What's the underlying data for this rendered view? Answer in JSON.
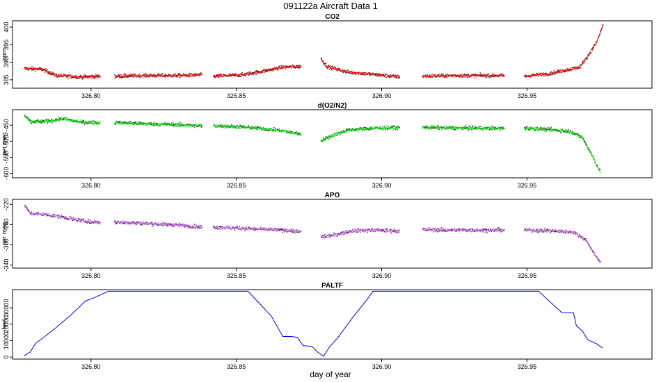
{
  "figure": {
    "title": "091122a   Aircraft Data 1",
    "xlabel": "day of year"
  },
  "chart_data": [
    {
      "type": "scatter",
      "title": "CO2",
      "ylabel": "ppm",
      "xlim": [
        326.773,
        326.993
      ],
      "ylim": [
        382.6,
        401.8
      ],
      "xticks": [
        "326.80",
        "326.85",
        "326.90",
        "326.95"
      ],
      "yticks": [
        "385",
        "390",
        "395",
        "400"
      ],
      "color": "#ff0000",
      "series": [
        {
          "x": [
            326.777,
            326.783,
            326.788,
            326.796,
            326.803
          ],
          "y": [
            388.2,
            388.0,
            386.2,
            385.8,
            386.0
          ]
        },
        {
          "x": [
            326.808,
            326.82,
            326.83,
            326.838
          ],
          "y": [
            386.0,
            386.2,
            386.2,
            386.4
          ]
        },
        {
          "x": [
            326.842,
            326.852,
            326.86,
            326.866,
            326.872
          ],
          "y": [
            386.0,
            386.4,
            387.6,
            388.6,
            388.8
          ]
        },
        {
          "x": [
            326.879,
            326.881,
            326.888,
            326.896,
            326.906
          ],
          "y": [
            391.0,
            388.8,
            387.2,
            386.6,
            385.8
          ]
        },
        {
          "x": [
            326.914,
            326.925,
            326.942
          ],
          "y": [
            386.0,
            386.2,
            386.2
          ]
        },
        {
          "x": [
            326.949,
            326.958,
            326.968,
            326.971,
            326.974,
            326.976
          ],
          "y": [
            386.0,
            386.8,
            388.6,
            392.0,
            396.0,
            400.6
          ]
        }
      ]
    },
    {
      "type": "scatter",
      "title": "d(O2/N2)",
      "ylabel": "per meg",
      "xlim": [
        326.773,
        326.993
      ],
      "ylim": [
        -614,
        -402
      ],
      "xticks": [
        "326.80",
        "326.85",
        "326.90",
        "326.95"
      ],
      "yticks": [
        "-450",
        "-500",
        "-550",
        "-600"
      ],
      "color": "#00ee00",
      "series": [
        {
          "x": [
            326.777,
            326.779,
            326.785,
            326.79,
            326.796,
            326.803
          ],
          "y": [
            -420,
            -440,
            -438,
            -430,
            -440,
            -443
          ]
        },
        {
          "x": [
            326.808,
            326.82,
            326.83,
            326.838
          ],
          "y": [
            -442,
            -446,
            -449,
            -452
          ]
        },
        {
          "x": [
            326.842,
            326.85,
            326.858,
            326.866,
            326.872
          ],
          "y": [
            -452,
            -455,
            -460,
            -468,
            -478
          ]
        },
        {
          "x": [
            326.879,
            326.883,
            326.888,
            326.896,
            326.906
          ],
          "y": [
            -498,
            -482,
            -466,
            -460,
            -458
          ]
        },
        {
          "x": [
            326.914,
            326.925,
            326.942
          ],
          "y": [
            -457,
            -459,
            -460
          ]
        },
        {
          "x": [
            326.949,
            326.958,
            326.965,
            326.969,
            326.972,
            326.975
          ],
          "y": [
            -459,
            -464,
            -470,
            -490,
            -540,
            -595
          ]
        }
      ]
    },
    {
      "type": "scatter",
      "title": "APO",
      "ylabel": "per meg",
      "xlim": [
        326.773,
        326.993
      ],
      "ylim": [
        -346,
        -210
      ],
      "xticks": [
        "326.80",
        "326.85",
        "326.90",
        "326.95"
      ],
      "yticks": [
        "-220",
        "-260",
        "-300",
        "-340"
      ],
      "color": "#dd66ff",
      "series": [
        {
          "x": [
            326.777,
            326.779,
            326.784,
            326.79,
            326.796,
            326.803
          ],
          "y": [
            -222,
            -238,
            -240,
            -245,
            -252,
            -256
          ]
        },
        {
          "x": [
            326.808,
            326.82,
            326.83,
            326.838
          ],
          "y": [
            -255,
            -258,
            -261,
            -265
          ]
        },
        {
          "x": [
            326.842,
            326.85,
            326.858,
            326.866,
            326.872
          ],
          "y": [
            -265,
            -267,
            -269,
            -271,
            -274
          ]
        },
        {
          "x": [
            326.879,
            326.884,
            326.89,
            326.898,
            326.906
          ],
          "y": [
            -285,
            -280,
            -272,
            -271,
            -273
          ]
        },
        {
          "x": [
            326.914,
            326.925,
            326.942
          ],
          "y": [
            -270,
            -271,
            -271
          ]
        },
        {
          "x": [
            326.949,
            326.958,
            326.966,
            326.97,
            326.975
          ],
          "y": [
            -271,
            -272,
            -275,
            -290,
            -335
          ]
        }
      ]
    },
    {
      "type": "line",
      "title": "PALTF",
      "ylabel": "feet",
      "xlim": [
        326.773,
        326.993
      ],
      "ylim": [
        -1200,
        41000
      ],
      "xticks": [
        "326.80",
        "326.85",
        "326.90",
        "326.95"
      ],
      "yticks": [
        "0",
        "10000",
        "20000",
        "30000"
      ],
      "color": "#0000ff",
      "x": [
        326.777,
        326.779,
        326.781,
        326.783,
        326.788,
        326.793,
        326.796,
        326.798,
        326.801,
        326.806,
        326.82,
        326.84,
        326.854,
        326.862,
        326.866,
        326.869,
        326.871,
        326.873,
        326.876,
        326.878,
        326.88,
        326.882,
        326.885,
        326.89,
        326.895,
        326.897,
        326.91,
        326.93,
        326.954,
        326.962,
        326.964,
        326.966,
        326.967,
        326.969,
        326.971,
        326.974,
        326.976
      ],
      "y": [
        800,
        3000,
        8500,
        11000,
        18000,
        25500,
        30500,
        34000,
        36000,
        40000,
        40000,
        40000,
        40000,
        25000,
        12500,
        12500,
        12000,
        7000,
        6500,
        3000,
        500,
        6000,
        12000,
        24000,
        35000,
        40000,
        40000,
        40000,
        40000,
        27000,
        27000,
        27000,
        19000,
        16000,
        10500,
        8000,
        5500
      ]
    }
  ]
}
